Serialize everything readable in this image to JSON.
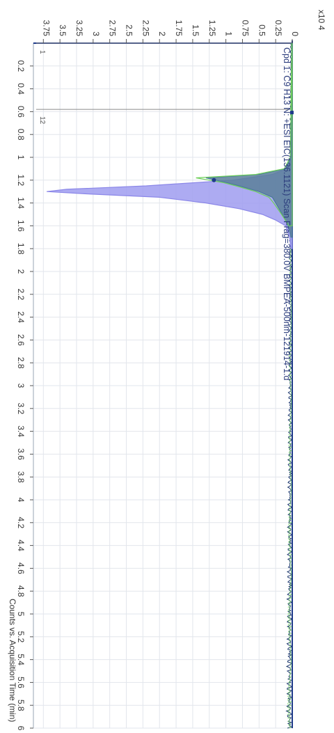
{
  "chart_data": {
    "type": "area",
    "orientation": "rotated-90-clockwise",
    "title": "Cpd 1: C9 H13 N: +ESI EIC(136.1121) Scan Frag=380.0V BMPEA-500nm-121914-1.d",
    "xlabel": "Counts vs. Acquisition Time (min)",
    "ylabel": "",
    "y_multiplier": "x10 4",
    "xlim": [
      0,
      6.0
    ],
    "ylim": [
      0,
      3.9
    ],
    "x_ticks": [
      "0.2",
      "0.4",
      "0.6",
      "0.8",
      "1",
      "1.2",
      "1.4",
      "1.6",
      "1.8",
      "2",
      "2.2",
      "2.4",
      "2.6",
      "2.8",
      "3",
      "3.2",
      "3.4",
      "3.6",
      "3.8",
      "4",
      "4.2",
      "4.4",
      "4.6",
      "4.8",
      "5",
      "5.2",
      "5.4",
      "5.6",
      "5.8",
      "6"
    ],
    "y_ticks": [
      "0",
      "0.25",
      "0.5",
      "0.75",
      "1",
      "1.25",
      "1.5",
      "1.75",
      "2",
      "2.25",
      "2.5",
      "2.75",
      "3",
      "3.25",
      "3.5",
      "3.75"
    ],
    "grid": true,
    "markers": [
      {
        "label": "1",
        "x": 0.0
      },
      {
        "label": "12",
        "x": 0.58
      }
    ],
    "series": [
      {
        "color": "#8b87e8",
        "values_desc": "main peak",
        "x": [
          0.0,
          1.0,
          1.1,
          1.15,
          1.2,
          1.25,
          1.28,
          1.3,
          1.32,
          1.35,
          1.4,
          1.45,
          1.5,
          1.55,
          1.6,
          1.7,
          1.8
        ],
        "y": [
          0.0,
          0.02,
          0.08,
          0.3,
          0.9,
          2.2,
          3.4,
          3.7,
          3.1,
          2.0,
          1.3,
          0.8,
          0.45,
          0.25,
          0.1,
          0.04,
          0.02
        ]
      },
      {
        "color": "#4a7a9a",
        "x": [
          0.0,
          1.0,
          1.1,
          1.15,
          1.18,
          1.2,
          1.22,
          1.25,
          1.3,
          1.35,
          1.4,
          1.5,
          1.6,
          1.7
        ],
        "y": [
          0.0,
          0.02,
          0.1,
          0.5,
          1.3,
          1.15,
          1.0,
          0.8,
          0.5,
          0.3,
          0.25,
          0.15,
          0.06,
          0.02
        ]
      },
      {
        "color": "#6ecf5a",
        "x": [
          0.0,
          1.0,
          1.1,
          1.15,
          1.18,
          1.2,
          1.22,
          1.25,
          1.3,
          1.35,
          1.4,
          1.5,
          1.6
        ],
        "y": [
          0.0,
          0.03,
          0.12,
          0.55,
          1.45,
          1.25,
          1.05,
          0.85,
          0.55,
          0.35,
          0.28,
          0.16,
          0.05
        ]
      }
    ],
    "peak_marker": {
      "x": 1.2,
      "y": 1.18
    }
  }
}
